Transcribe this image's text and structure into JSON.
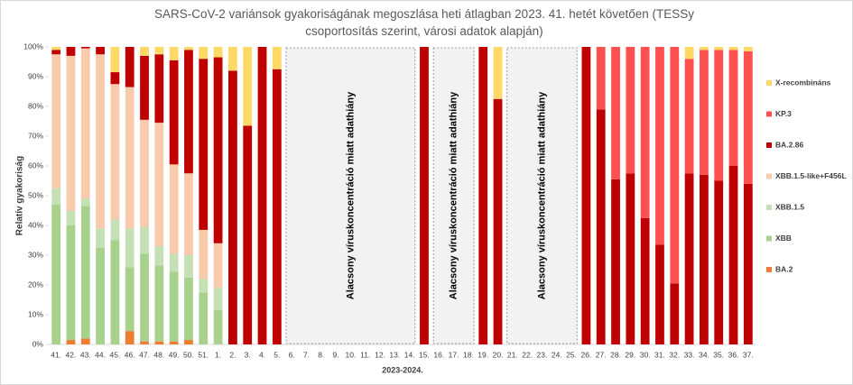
{
  "chart_data": {
    "type": "stacked-bar",
    "title": "SARS-CoV-2 variánsok gyakoriságának megoszlása heti átlagban 2023. 41. hetét követően (TESSy csoportosítás szerint, városi adatok alapján)",
    "x_label": "2023-2024.",
    "y_label": "Relatív gyakoriság",
    "annotations": [
      "Alacsony víruskoncentráció miatt adathiány",
      "Alacsony víruskoncentráció miatt adathiány",
      "Alacsony víruskoncentráció miatt adathiány"
    ],
    "categories": [
      "41.",
      "42.",
      "43.",
      "44.",
      "45.",
      "46.",
      "47.",
      "48.",
      "49.",
      "50.",
      "51.",
      "1.",
      "2.",
      "3.",
      "4.",
      "5.",
      "6.",
      "7.",
      "8.",
      "9.",
      "10.",
      "11.",
      "12.",
      "13.",
      "14.",
      "15.",
      "16.",
      "17.",
      "18.",
      "19.",
      "20.",
      "21.",
      "22.",
      "23.",
      "24.",
      "25.",
      "26.",
      "27.",
      "28.",
      "29.",
      "30.",
      "31.",
      "32.",
      "33.",
      "34.",
      "35.",
      "36.",
      "37."
    ],
    "series": [
      {
        "name": "BA.2",
        "color": "#ed7d31",
        "values": [
          0,
          1.5,
          2,
          0,
          0,
          4.5,
          1,
          1,
          1,
          1.5,
          0,
          0,
          0,
          0,
          0,
          0,
          null,
          null,
          null,
          null,
          null,
          null,
          null,
          null,
          null,
          0,
          null,
          null,
          null,
          0,
          0,
          null,
          null,
          null,
          null,
          null,
          0,
          0,
          0,
          0,
          0,
          0,
          0,
          0,
          0,
          0,
          0,
          0
        ]
      },
      {
        "name": "XBB",
        "color": "#a9d18e",
        "values": [
          47,
          38.5,
          44.5,
          32.5,
          35,
          21.5,
          29.5,
          25.5,
          23.5,
          21,
          17.5,
          11.5,
          0,
          0,
          0,
          0,
          null,
          null,
          null,
          null,
          null,
          null,
          null,
          null,
          null,
          0,
          null,
          null,
          null,
          0,
          0,
          null,
          null,
          null,
          null,
          null,
          0,
          0,
          0,
          0,
          0,
          0,
          0,
          0,
          0,
          0,
          0,
          0
        ]
      },
      {
        "name": "XBB.1.5",
        "color": "#c5e0b4",
        "values": [
          5.5,
          5,
          2.5,
          6.5,
          7,
          13,
          9,
          6.5,
          6,
          7.5,
          4.5,
          7.5,
          0,
          0,
          0,
          0,
          null,
          null,
          null,
          null,
          null,
          null,
          null,
          null,
          null,
          0,
          null,
          null,
          null,
          0,
          0,
          null,
          null,
          null,
          null,
          null,
          0,
          0,
          0,
          0,
          0,
          0,
          0,
          0,
          0,
          0,
          0,
          0
        ]
      },
      {
        "name": "XBB.1.5-like+F456L",
        "color": "#f8cbad",
        "values": [
          45,
          52,
          50.5,
          58.5,
          45.5,
          47.5,
          36,
          41.5,
          30,
          27.5,
          16.5,
          15,
          0,
          0,
          0,
          0,
          null,
          null,
          null,
          null,
          null,
          null,
          null,
          null,
          null,
          0,
          null,
          null,
          null,
          0,
          0,
          null,
          null,
          null,
          null,
          null,
          0,
          0,
          0,
          0,
          0,
          0,
          0,
          0,
          0,
          0,
          0,
          0
        ]
      },
      {
        "name": "BA.2.86",
        "color": "#c00000",
        "values": [
          1.5,
          3,
          0.5,
          2.5,
          4,
          13.5,
          21.5,
          23,
          35,
          41.5,
          57.5,
          62.5,
          92,
          73.5,
          100,
          92.5,
          null,
          null,
          null,
          null,
          null,
          null,
          null,
          null,
          null,
          100,
          null,
          null,
          null,
          100,
          82.5,
          null,
          null,
          null,
          null,
          null,
          100,
          79,
          55.5,
          57.5,
          42.5,
          33.5,
          20.5,
          57.5,
          57,
          55,
          60,
          54
        ]
      },
      {
        "name": "KP.3",
        "color": "#ff5050",
        "values": [
          0,
          0,
          0,
          0,
          0,
          0,
          0,
          0,
          0,
          0,
          0,
          0,
          0,
          0,
          0,
          0,
          null,
          null,
          null,
          null,
          null,
          null,
          null,
          null,
          null,
          0,
          null,
          null,
          null,
          0,
          0,
          null,
          null,
          null,
          null,
          null,
          0,
          21,
          44.5,
          42.5,
          57.5,
          66.5,
          79.5,
          38.5,
          42,
          44,
          39,
          44.5
        ]
      },
      {
        "name": "X-recombináns",
        "color": "#ffd966",
        "values": [
          1,
          0,
          0,
          0,
          8.5,
          0,
          3,
          2.5,
          4.5,
          1,
          4,
          3.5,
          8,
          26.5,
          0,
          7.5,
          null,
          null,
          null,
          null,
          null,
          null,
          null,
          null,
          null,
          0,
          null,
          null,
          null,
          0,
          17.5,
          null,
          null,
          null,
          null,
          null,
          0,
          0,
          0,
          0,
          0,
          0,
          0,
          4,
          1,
          1,
          1,
          1.5
        ]
      }
    ],
    "ylim": [
      0,
      100
    ],
    "yticks": [
      {
        "value": 0,
        "label": "0%"
      },
      {
        "value": 10,
        "label": "10%"
      },
      {
        "value": 20,
        "label": "20%"
      },
      {
        "value": 30,
        "label": "30%"
      },
      {
        "value": 40,
        "label": "40%"
      },
      {
        "value": 50,
        "label": "50%"
      },
      {
        "value": 60,
        "label": "60%"
      },
      {
        "value": 70,
        "label": "70%"
      },
      {
        "value": 80,
        "label": "80%"
      },
      {
        "value": 90,
        "label": "90%"
      },
      {
        "value": 100,
        "label": "100%"
      }
    ],
    "grid": false,
    "legend": "right"
  }
}
